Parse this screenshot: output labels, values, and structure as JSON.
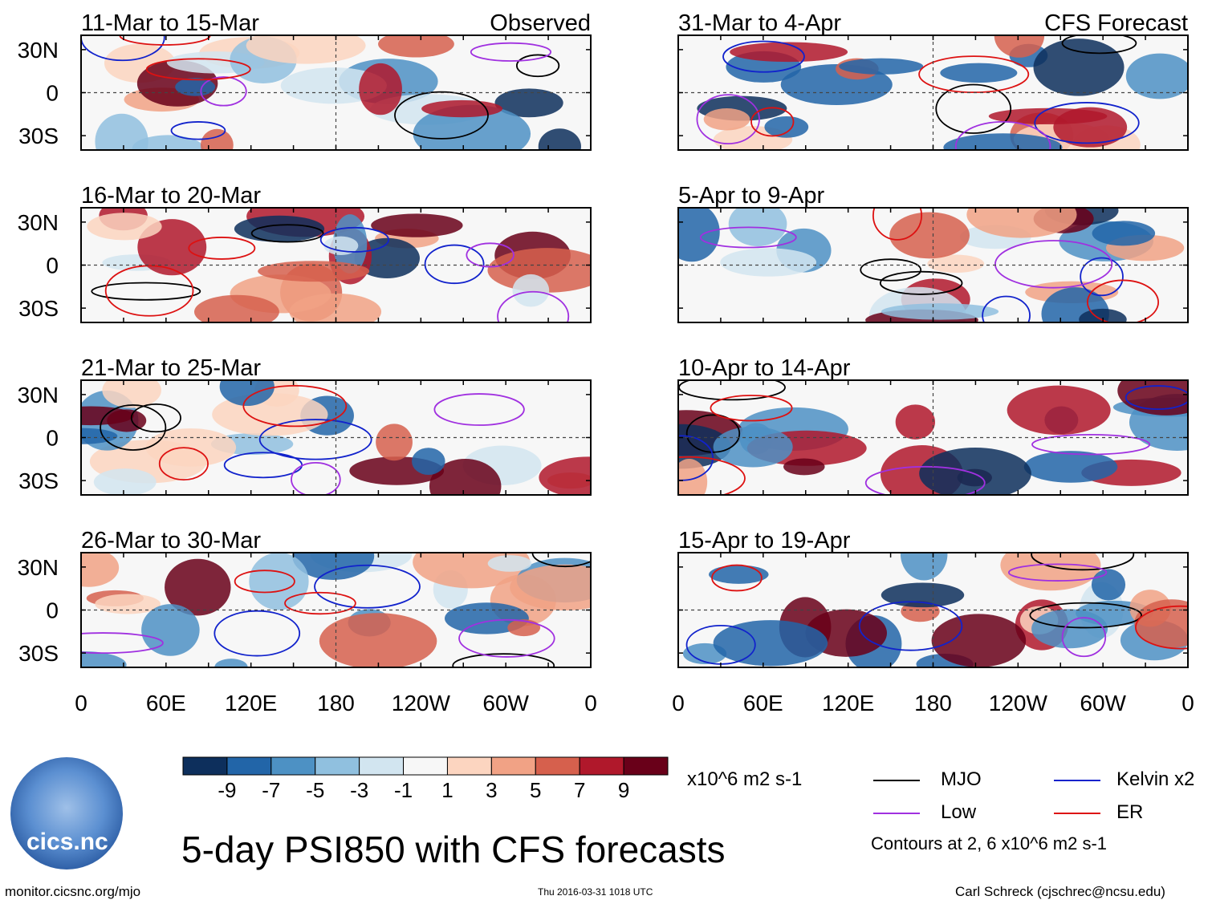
{
  "chart_data": {
    "type": "heatmap",
    "title": "5-day PSI850 with CFS forecasts",
    "variable": "PSI850",
    "units": "x10^6 m2 s-1",
    "xlabels": [
      "0",
      "60E",
      "120E",
      "180",
      "120W",
      "60W",
      "0"
    ],
    "ylabels": [
      "30N",
      "0",
      "30S"
    ],
    "xlim": [
      0,
      360
    ],
    "ylim": [
      -40,
      40
    ],
    "colorbar": {
      "ticks": [
        "-9",
        "-7",
        "-5",
        "-3",
        "-1",
        "1",
        "3",
        "5",
        "7",
        "9"
      ],
      "colors": [
        "#0d2f5c",
        "#2265a8",
        "#4d91c4",
        "#90c0df",
        "#d2e5f0",
        "#f7f7f7",
        "#fcd5c0",
        "#f1a285",
        "#d6604d",
        "#b0182b",
        "#690019"
      ]
    },
    "panels": [
      {
        "label": "11-Mar to 15-Mar",
        "tag": "Observed",
        "column": "observed"
      },
      {
        "label": "16-Mar to 20-Mar",
        "tag": "",
        "column": "observed"
      },
      {
        "label": "21-Mar to 25-Mar",
        "tag": "",
        "column": "observed"
      },
      {
        "label": "26-Mar to 30-Mar",
        "tag": "",
        "column": "observed"
      },
      {
        "label": "31-Mar to 4-Apr",
        "tag": "CFS Forecast",
        "column": "forecast"
      },
      {
        "label": "5-Apr to 9-Apr",
        "tag": "",
        "column": "forecast"
      },
      {
        "label": "10-Apr to 14-Apr",
        "tag": "",
        "column": "forecast"
      },
      {
        "label": "15-Apr to 19-Apr",
        "tag": "",
        "column": "forecast"
      }
    ],
    "legend": [
      {
        "name": "MJO",
        "color": "#000000"
      },
      {
        "name": "Kelvin x2",
        "color": "#1122cc"
      },
      {
        "name": "Low",
        "color": "#a030e0"
      },
      {
        "name": "ER",
        "color": "#dd1111"
      }
    ],
    "contours_note": "Contours at 2, 6 x10^6 m2 s-1"
  },
  "footer": {
    "left": "monitor.cicsnc.org/mjo",
    "center": "Thu 2016-03-31 1018 UTC",
    "right": "Carl Schreck (cjschrec@ncsu.edu)"
  },
  "logo": {
    "text": "cics.nc"
  }
}
